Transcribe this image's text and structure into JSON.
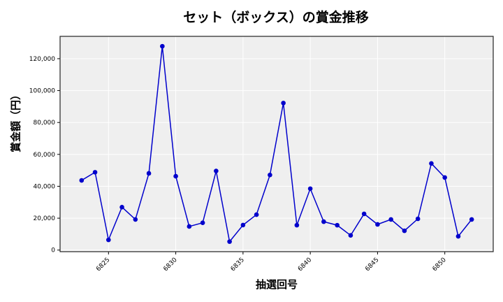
{
  "chart_data": {
    "type": "line",
    "title": "セット（ボックス）の賞金推移",
    "xlabel": "抽選回号",
    "ylabel": "賞金額（円）",
    "x": [
      6823,
      6824,
      6825,
      6826,
      6827,
      6828,
      6829,
      6830,
      6831,
      6832,
      6833,
      6834,
      6835,
      6836,
      6837,
      6838,
      6839,
      6840,
      6841,
      6842,
      6843,
      6844,
      6845,
      6846,
      6847,
      6848,
      6849,
      6850,
      6851,
      6852
    ],
    "series": [
      {
        "name": "セット（ボックス）",
        "color": "#0000cc",
        "marker": "circle",
        "values": [
          43700,
          48800,
          6400,
          26900,
          19200,
          48100,
          127800,
          46300,
          14800,
          17100,
          49600,
          5300,
          15700,
          22200,
          47100,
          92200,
          15600,
          38500,
          17800,
          15600,
          9200,
          22700,
          16100,
          19200,
          12100,
          19600,
          54300,
          45500,
          8600,
          19200
        ]
      }
    ],
    "xticks": [
      6825,
      6830,
      6835,
      6840,
      6845,
      6850
    ],
    "yticks": [
      0,
      20000,
      40000,
      60000,
      80000,
      100000,
      120000
    ],
    "ytick_labels": [
      "0",
      "20,000",
      "40,000",
      "60,000",
      "80,000",
      "100,000",
      "120,000"
    ],
    "xlim": [
      6821.4,
      6853.6
    ],
    "ylim": [
      -1000,
      134000
    ],
    "grid": true,
    "legend": null,
    "plot_background": "#efefef",
    "grid_color": "#ffffff"
  }
}
